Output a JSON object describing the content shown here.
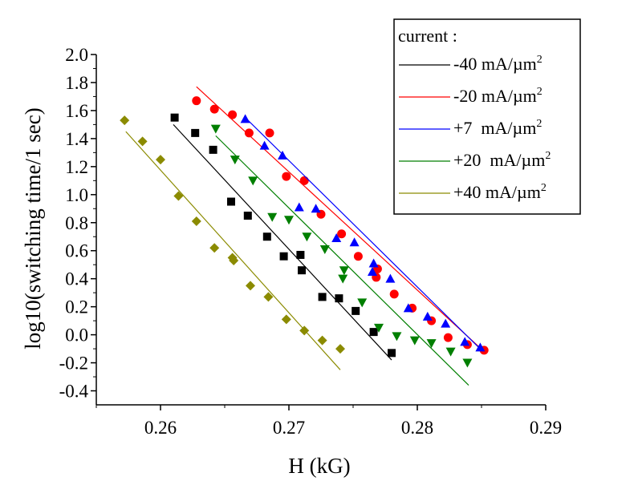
{
  "chart_data": {
    "type": "scatter",
    "xlabel": "H (kG)",
    "ylabel": "log10(switching time/1 sec)",
    "xlim": [
      0.255,
      0.29
    ],
    "ylim": [
      -0.5,
      2.0
    ],
    "xticks": [
      0.26,
      0.27,
      0.28,
      0.29
    ],
    "xtick_labels": [
      "0.26",
      "0.27",
      "0.28",
      "0.29"
    ],
    "yticks": [
      -0.4,
      -0.2,
      0.0,
      0.2,
      0.4,
      0.6,
      0.8,
      1.0,
      1.2,
      1.4,
      1.6,
      1.8,
      2.0
    ],
    "ytick_labels": [
      "-0.4",
      "-0.2",
      "0.0",
      "0.2",
      "0.4",
      "0.6",
      "0.8",
      "1.0",
      "1.2",
      "1.4",
      "1.6",
      "1.8",
      "2.0"
    ],
    "legend": {
      "title": "current :",
      "position": "top-right"
    },
    "series": [
      {
        "name": "-40 mA/µm",
        "superscript": "2",
        "color": "#000000",
        "marker": "square",
        "points": [
          [
            0.2611,
            1.55
          ],
          [
            0.2627,
            1.44
          ],
          [
            0.2641,
            1.32
          ],
          [
            0.2655,
            0.95
          ],
          [
            0.2668,
            0.85
          ],
          [
            0.2683,
            0.7
          ],
          [
            0.2696,
            0.56
          ],
          [
            0.2709,
            0.57
          ],
          [
            0.271,
            0.46
          ],
          [
            0.2726,
            0.27
          ],
          [
            0.2739,
            0.26
          ],
          [
            0.2752,
            0.17
          ],
          [
            0.2766,
            0.02
          ],
          [
            0.278,
            -0.13
          ]
        ],
        "fit": [
          [
            0.261,
            1.5
          ],
          [
            0.278,
            -0.18
          ]
        ]
      },
      {
        "name": "-20 mA/µm",
        "superscript": "2",
        "color": "#ff0000",
        "marker": "circle",
        "points": [
          [
            0.2628,
            1.67
          ],
          [
            0.2642,
            1.61
          ],
          [
            0.2656,
            1.57
          ],
          [
            0.2669,
            1.44
          ],
          [
            0.2685,
            1.44
          ],
          [
            0.2698,
            1.13
          ],
          [
            0.2712,
            1.1
          ],
          [
            0.2725,
            0.86
          ],
          [
            0.2741,
            0.72
          ],
          [
            0.2754,
            0.56
          ],
          [
            0.2769,
            0.47
          ],
          [
            0.2768,
            0.41
          ],
          [
            0.2782,
            0.29
          ],
          [
            0.2796,
            0.19
          ],
          [
            0.2811,
            0.1
          ],
          [
            0.2824,
            -0.02
          ],
          [
            0.2839,
            -0.07
          ],
          [
            0.2852,
            -0.11
          ]
        ],
        "fit": [
          [
            0.2628,
            1.77
          ],
          [
            0.2852,
            -0.12
          ]
        ]
      },
      {
        "name": "+7  mA/µm",
        "superscript": "2",
        "color": "#0000ff",
        "marker": "triangle-up",
        "points": [
          [
            0.2666,
            1.54
          ],
          [
            0.2681,
            1.35
          ],
          [
            0.2695,
            1.28
          ],
          [
            0.2708,
            0.91
          ],
          [
            0.2721,
            0.9
          ],
          [
            0.2737,
            0.69
          ],
          [
            0.2751,
            0.66
          ],
          [
            0.2765,
            0.45
          ],
          [
            0.2766,
            0.51
          ],
          [
            0.2779,
            0.4
          ],
          [
            0.2793,
            0.19
          ],
          [
            0.2808,
            0.13
          ],
          [
            0.2822,
            0.08
          ],
          [
            0.2837,
            -0.05
          ],
          [
            0.2849,
            -0.09
          ]
        ],
        "fit": [
          [
            0.2666,
            1.55
          ],
          [
            0.285,
            -0.11
          ]
        ]
      },
      {
        "name": "+20  mA/µm",
        "superscript": "2",
        "color": "#007f00",
        "marker": "triangle-down",
        "points": [
          [
            0.2643,
            1.47
          ],
          [
            0.2658,
            1.25
          ],
          [
            0.2672,
            1.1
          ],
          [
            0.2687,
            0.84
          ],
          [
            0.27,
            0.82
          ],
          [
            0.2714,
            0.7
          ],
          [
            0.2728,
            0.61
          ],
          [
            0.2743,
            0.46
          ],
          [
            0.2742,
            0.4
          ],
          [
            0.2757,
            0.23
          ],
          [
            0.277,
            0.05
          ],
          [
            0.2784,
            -0.01
          ],
          [
            0.2798,
            -0.04
          ],
          [
            0.2811,
            -0.06
          ],
          [
            0.2826,
            -0.12
          ],
          [
            0.2839,
            -0.2
          ]
        ],
        "fit": [
          [
            0.2643,
            1.42
          ],
          [
            0.284,
            -0.36
          ]
        ]
      },
      {
        "name": "+40 mA/µm",
        "superscript": "2",
        "color": "#8b8b00",
        "marker": "diamond",
        "points": [
          [
            0.2572,
            1.53
          ],
          [
            0.2586,
            1.38
          ],
          [
            0.26,
            1.25
          ],
          [
            0.2614,
            0.99
          ],
          [
            0.2628,
            0.81
          ],
          [
            0.2642,
            0.62
          ],
          [
            0.2656,
            0.55
          ],
          [
            0.2657,
            0.53
          ],
          [
            0.267,
            0.35
          ],
          [
            0.2684,
            0.27
          ],
          [
            0.2698,
            0.11
          ],
          [
            0.2712,
            0.03
          ],
          [
            0.2726,
            -0.04
          ],
          [
            0.274,
            -0.1
          ]
        ],
        "fit": [
          [
            0.2573,
            1.45
          ],
          [
            0.274,
            -0.25
          ]
        ]
      }
    ]
  }
}
